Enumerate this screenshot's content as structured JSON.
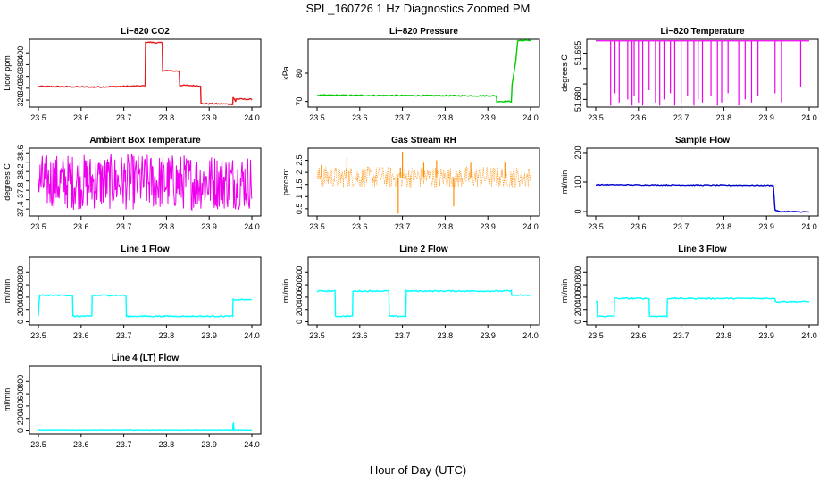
{
  "title": "SPL_160726  1 Hz Diagnostics Zoomed PM",
  "xlabel": "Hour of Day (UTC)",
  "x_ticks": [
    "23.5",
    "23.6",
    "23.7",
    "23.8",
    "23.9",
    "24.0"
  ],
  "chart_data": [
    {
      "type": "line",
      "title": "Li−820 CO2",
      "ylabel": "Licor ppm",
      "color": "#e41a1c",
      "xlim": [
        23.5,
        24.0
      ],
      "ylim": [
        308,
        423
      ],
      "yticks": [
        320,
        340,
        360,
        380,
        400
      ],
      "series": [
        {
          "x": [
            23.5,
            23.63,
            23.75,
            23.751,
            23.79,
            23.791,
            23.83,
            23.831,
            23.88,
            23.881,
            23.955,
            23.956,
            23.962,
            23.963,
            24.0
          ],
          "y": [
            343,
            342,
            344,
            418,
            417,
            370,
            369,
            345,
            344,
            314,
            313,
            325,
            317,
            322,
            321
          ]
        }
      ],
      "noise": 1
    },
    {
      "type": "line",
      "title": "Li−820 Pressure",
      "ylabel": "kPa",
      "color": "#00cc00",
      "xlim": [
        23.5,
        24.0
      ],
      "ylim": [
        68,
        92
      ],
      "yticks": [
        70,
        80
      ],
      "series": [
        {
          "x": [
            23.5,
            23.92,
            23.921,
            23.955,
            23.957,
            23.965,
            23.97,
            24.0
          ],
          "y": [
            72.2,
            72.0,
            70,
            70,
            76,
            84,
            91.5,
            91.6
          ]
        }
      ],
      "noise": 0.2
    },
    {
      "type": "spikes",
      "title": "Li−820 Temperature",
      "ylabel": "degrees C",
      "color": "#ee00ee",
      "xlim": [
        23.5,
        24.0
      ],
      "ylim": [
        51.6775,
        51.6995
      ],
      "yticks": [
        51.68,
        51.685,
        51.69,
        51.695
      ],
      "ytick_labels": [
        "51.680",
        "",
        "",
        "51.695"
      ],
      "baseline": 51.699,
      "spike_x": [
        23.535,
        23.545,
        23.555,
        23.575,
        23.585,
        23.59,
        23.6,
        23.61,
        23.625,
        23.64,
        23.65,
        23.66,
        23.675,
        23.685,
        23.7,
        23.715,
        23.73,
        23.74,
        23.75,
        23.77,
        23.785,
        23.795,
        23.81,
        23.835,
        23.85,
        23.865,
        23.88,
        23.92,
        23.935,
        23.98
      ],
      "spike_low": [
        51.678,
        51.682,
        51.679,
        51.68,
        51.678,
        51.681,
        51.679,
        51.678,
        51.683,
        51.679,
        51.678,
        51.68,
        51.682,
        51.678,
        51.679,
        51.681,
        51.678,
        51.68,
        51.679,
        51.681,
        51.678,
        51.679,
        51.682,
        51.678,
        51.68,
        51.679,
        51.681,
        51.682,
        51.679,
        51.684
      ]
    },
    {
      "type": "noise",
      "title": "Ambient Box Temperature",
      "ylabel": "degrees C",
      "color": "#ee00ee",
      "xlim": [
        23.5,
        24.0
      ],
      "ylim": [
        37.25,
        38.7
      ],
      "yticks": [
        37.4,
        37.6,
        37.8,
        38.0,
        38.2,
        38.4,
        38.6
      ],
      "ytick_labels": [
        "37.4",
        "",
        "37.8",
        "",
        "38.2",
        "",
        "38.6"
      ],
      "center": 37.98,
      "amplitude": 0.6
    },
    {
      "type": "noise",
      "title": "Gas Stream RH",
      "ylabel": "percent",
      "color": "#ff8c00",
      "xlim": [
        23.5,
        24.0
      ],
      "ylim": [
        0.2,
        3.0
      ],
      "yticks": [
        0.5,
        1.0,
        1.5,
        2.0,
        2.5
      ],
      "center": 1.8,
      "amplitude": 0.45,
      "points": true,
      "spike_x": [
        23.51,
        23.57,
        23.69,
        23.695,
        23.7,
        23.75,
        23.78,
        23.82,
        23.86,
        23.94
      ],
      "spike_y": [
        2.3,
        2.6,
        0.3,
        2.2,
        2.85,
        2.4,
        2.5,
        0.6,
        2.4,
        2.4
      ]
    },
    {
      "type": "line",
      "title": "Sample Flow",
      "ylabel": "ml/min",
      "color": "#0000cc",
      "xlim": [
        23.5,
        24.0
      ],
      "ylim": [
        -15,
        215
      ],
      "yticks": [
        0,
        100,
        200
      ],
      "series": [
        {
          "x": [
            23.5,
            23.915,
            23.916,
            23.92,
            23.93,
            24.0
          ],
          "y": [
            91,
            89,
            88,
            5,
            0,
            -1
          ]
        }
      ],
      "noise": 1.5
    },
    {
      "type": "line",
      "title": "Line 1 Flow",
      "ylabel": "ml/min",
      "color": "#00ffff",
      "xlim": [
        23.5,
        24.0
      ],
      "ylim": [
        -50,
        1050
      ],
      "yticks": [
        0,
        200,
        400,
        600,
        800
      ],
      "series": [
        {
          "x": [
            23.5,
            23.501,
            23.503,
            23.58,
            23.581,
            23.625,
            23.626,
            23.705,
            23.706,
            23.955,
            23.956,
            24.0
          ],
          "y": [
            100,
            240,
            430,
            430,
            90,
            90,
            430,
            430,
            90,
            90,
            360,
            360
          ]
        }
      ],
      "noise": 10
    },
    {
      "type": "line",
      "title": "Line 2 Flow",
      "ylabel": "ml/min",
      "color": "#00ffff",
      "xlim": [
        23.5,
        24.0
      ],
      "ylim": [
        -50,
        1050
      ],
      "yticks": [
        0,
        200,
        400,
        600,
        800
      ],
      "series": [
        {
          "x": [
            23.5,
            23.542,
            23.543,
            23.583,
            23.584,
            23.668,
            23.669,
            23.708,
            23.709,
            23.955,
            23.956,
            24.0
          ],
          "y": [
            500,
            500,
            90,
            90,
            500,
            500,
            90,
            90,
            500,
            500,
            430,
            430
          ]
        }
      ],
      "noise": 10
    },
    {
      "type": "line",
      "title": "Line 3 Flow",
      "ylabel": "ml/min",
      "color": "#00ffff",
      "xlim": [
        23.5,
        24.0
      ],
      "ylim": [
        -50,
        1050
      ],
      "yticks": [
        0,
        200,
        400,
        600,
        800
      ],
      "series": [
        {
          "x": [
            23.5,
            23.503,
            23.504,
            23.543,
            23.544,
            23.625,
            23.626,
            23.667,
            23.668,
            23.92,
            23.921,
            24.0
          ],
          "y": [
            330,
            330,
            90,
            90,
            380,
            380,
            90,
            90,
            380,
            380,
            330,
            330
          ]
        }
      ],
      "noise": 10
    },
    {
      "type": "line",
      "title": "Line 4 (LT) Flow",
      "ylabel": "ml/min",
      "color": "#00ffff",
      "xlim": [
        23.5,
        24.0
      ],
      "ylim": [
        -50,
        1050
      ],
      "yticks": [
        0,
        200,
        400,
        600,
        800
      ],
      "series": [
        {
          "x": [
            23.5,
            23.955,
            23.956,
            23.957,
            23.958,
            24.0
          ],
          "y": [
            5,
            5,
            120,
            120,
            5,
            5
          ]
        }
      ],
      "noise": 3
    }
  ]
}
